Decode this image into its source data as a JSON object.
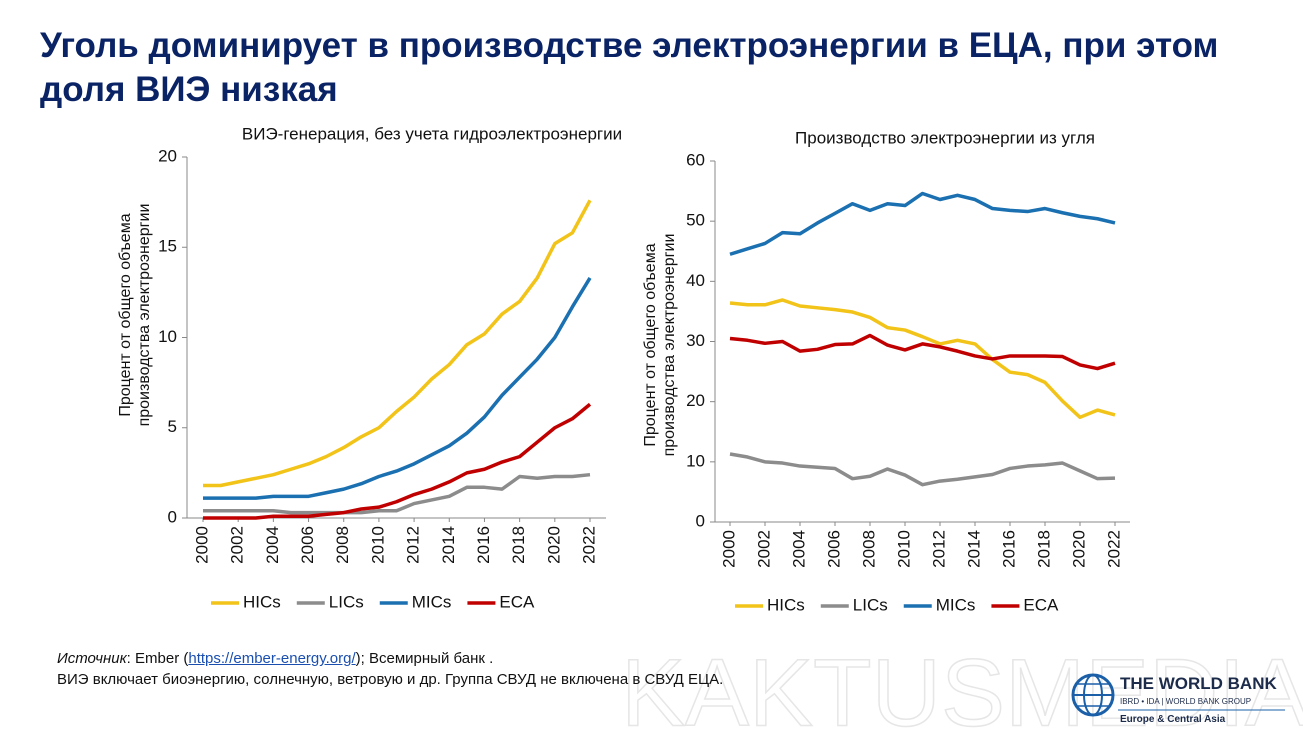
{
  "title": "Уголь доминирует в производстве электроэнергии в ЕЦА, при этом доля ВИЭ низкая",
  "chart_data": [
    {
      "type": "line",
      "title": "ВИЭ-генерация, без учета гидроэлектроэнергии",
      "y_label": "Процент от общего объема производства электроэнергии",
      "x": [
        2000,
        2001,
        2002,
        2003,
        2004,
        2005,
        2006,
        2007,
        2008,
        2009,
        2010,
        2011,
        2012,
        2013,
        2014,
        2015,
        2016,
        2017,
        2018,
        2019,
        2020,
        2021,
        2022
      ],
      "xlim": [
        2000,
        2022
      ],
      "xticks": [
        2000,
        2002,
        2004,
        2006,
        2008,
        2010,
        2012,
        2014,
        2016,
        2018,
        2020,
        2022
      ],
      "ylim": [
        0,
        20
      ],
      "yticks": [
        0,
        5,
        10,
        15,
        20
      ],
      "grid": false,
      "legend": "bottom",
      "series": [
        {
          "name": "HICs",
          "color": "#f2c318",
          "values": [
            1.8,
            1.8,
            2.0,
            2.2,
            2.4,
            2.7,
            3.0,
            3.4,
            3.9,
            4.5,
            5.0,
            5.9,
            6.7,
            7.7,
            8.5,
            9.6,
            10.2,
            11.3,
            12.0,
            13.3,
            15.2,
            15.8,
            17.6
          ]
        },
        {
          "name": "LICs",
          "color": "#8c8c8c",
          "values": [
            0.4,
            0.4,
            0.4,
            0.4,
            0.4,
            0.3,
            0.3,
            0.3,
            0.3,
            0.3,
            0.4,
            0.4,
            0.8,
            1.0,
            1.2,
            1.7,
            1.7,
            1.6,
            2.3,
            2.2,
            2.3,
            2.3,
            2.4
          ]
        },
        {
          "name": "MICs",
          "color": "#1a70b0",
          "values": [
            1.1,
            1.1,
            1.1,
            1.1,
            1.2,
            1.2,
            1.2,
            1.4,
            1.6,
            1.9,
            2.3,
            2.6,
            3.0,
            3.5,
            4.0,
            4.7,
            5.6,
            6.8,
            7.8,
            8.8,
            10.0,
            11.7,
            13.3
          ]
        },
        {
          "name": "ECA",
          "color": "#c00000",
          "values": [
            0,
            0,
            0,
            0,
            0.1,
            0.1,
            0.1,
            0.2,
            0.3,
            0.5,
            0.6,
            0.9,
            1.3,
            1.6,
            2.0,
            2.5,
            2.7,
            3.1,
            3.4,
            4.2,
            5.0,
            5.5,
            6.3
          ]
        }
      ]
    },
    {
      "type": "line",
      "title": "Производство электроэнергии из угля",
      "y_label": "Процент от общего объема производства электроэнергии",
      "x": [
        2000,
        2001,
        2002,
        2003,
        2004,
        2005,
        2006,
        2007,
        2008,
        2009,
        2010,
        2011,
        2012,
        2013,
        2014,
        2015,
        2016,
        2017,
        2018,
        2019,
        2020,
        2021,
        2022
      ],
      "xlim": [
        2000,
        2022
      ],
      "xticks": [
        2000,
        2002,
        2004,
        2006,
        2008,
        2010,
        2012,
        2014,
        2016,
        2018,
        2020,
        2022
      ],
      "ylim": [
        0,
        60
      ],
      "yticks": [
        0,
        10,
        20,
        30,
        40,
        50,
        60
      ],
      "grid": false,
      "legend": "bottom",
      "series": [
        {
          "name": "HICs",
          "color": "#f2c318",
          "values": [
            36.4,
            36.1,
            36.1,
            36.9,
            35.9,
            35.6,
            35.3,
            34.9,
            34.0,
            32.3,
            31.9,
            30.8,
            29.6,
            30.2,
            29.6,
            27.0,
            24.9,
            24.5,
            23.2,
            20.1,
            17.4,
            18.6,
            17.8
          ]
        },
        {
          "name": "LICs",
          "color": "#8c8c8c",
          "values": [
            11.3,
            10.8,
            10.0,
            9.8,
            9.3,
            9.1,
            8.9,
            7.2,
            7.6,
            8.8,
            7.8,
            6.2,
            6.8,
            7.1,
            7.5,
            7.9,
            8.9,
            9.3,
            9.5,
            9.8,
            8.5,
            7.2,
            7.3
          ]
        },
        {
          "name": "MICs",
          "color": "#1a70b0",
          "values": [
            44.5,
            45.4,
            46.3,
            48.1,
            47.9,
            49.7,
            51.3,
            52.9,
            51.8,
            52.9,
            52.6,
            54.6,
            53.6,
            54.3,
            53.6,
            52.1,
            51.8,
            51.6,
            52.1,
            51.4,
            50.8,
            50.4,
            49.7
          ]
        },
        {
          "name": "ECA",
          "color": "#c00000",
          "values": [
            30.5,
            30.2,
            29.7,
            30.0,
            28.4,
            28.7,
            29.5,
            29.6,
            31.0,
            29.4,
            28.6,
            29.6,
            29.1,
            28.4,
            27.6,
            27.1,
            27.6,
            27.6,
            27.6,
            27.5,
            26.1,
            25.5,
            26.4
          ]
        }
      ]
    }
  ],
  "notes": {
    "source": [
      "Источник",
      ": Ember (",
      "https://ember-energy.org/",
      "); Всемирный банк ."
    ],
    "text": "ВИЭ включает биоэнергию, солнечную, ветровую и др. Группа СВУД не включена в СВУД ЕЦА."
  },
  "watermark": "KAKTUSMEDIA",
  "logo": {
    "name": "THE WORLD BANK",
    "group": "IBRD • IDA | WORLD BANK GROUP",
    "region": "Europe & Central Asia"
  }
}
